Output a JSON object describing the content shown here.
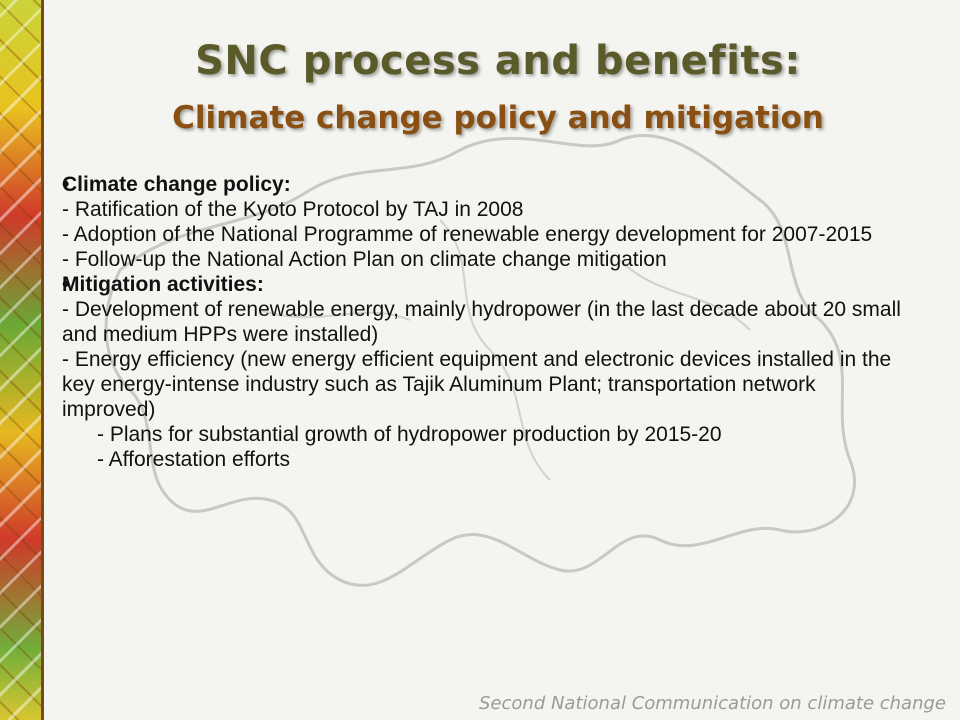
{
  "slide": {
    "title": "SNC process and benefits:",
    "subtitle": "Climate change policy and mitigation",
    "sections": [
      {
        "heading": "Climate change policy:",
        "items": [
          "- Ratification of the Kyoto Protocol by TAJ in 2008",
          "- Adoption of the National Programme of renewable energy development for 2007-2015",
          "- Follow-up the National Action Plan on climate change mitigation"
        ]
      },
      {
        "heading": "Mitigation activities:",
        "items": [
          "- Development of renewable energy, mainly hydropower (in the last decade about 20 small and medium HPPs were installed)",
          "- Energy efficiency (new energy efficient equipment and electronic devices installed in the key energy-intense industry such as Tajik Aluminum Plant; transportation network improved)",
          "- Plans for substantial growth of hydropower production by 2015-20",
          "- Afforestation efforts"
        ]
      }
    ],
    "footer": "Second National Communication on climate change"
  }
}
